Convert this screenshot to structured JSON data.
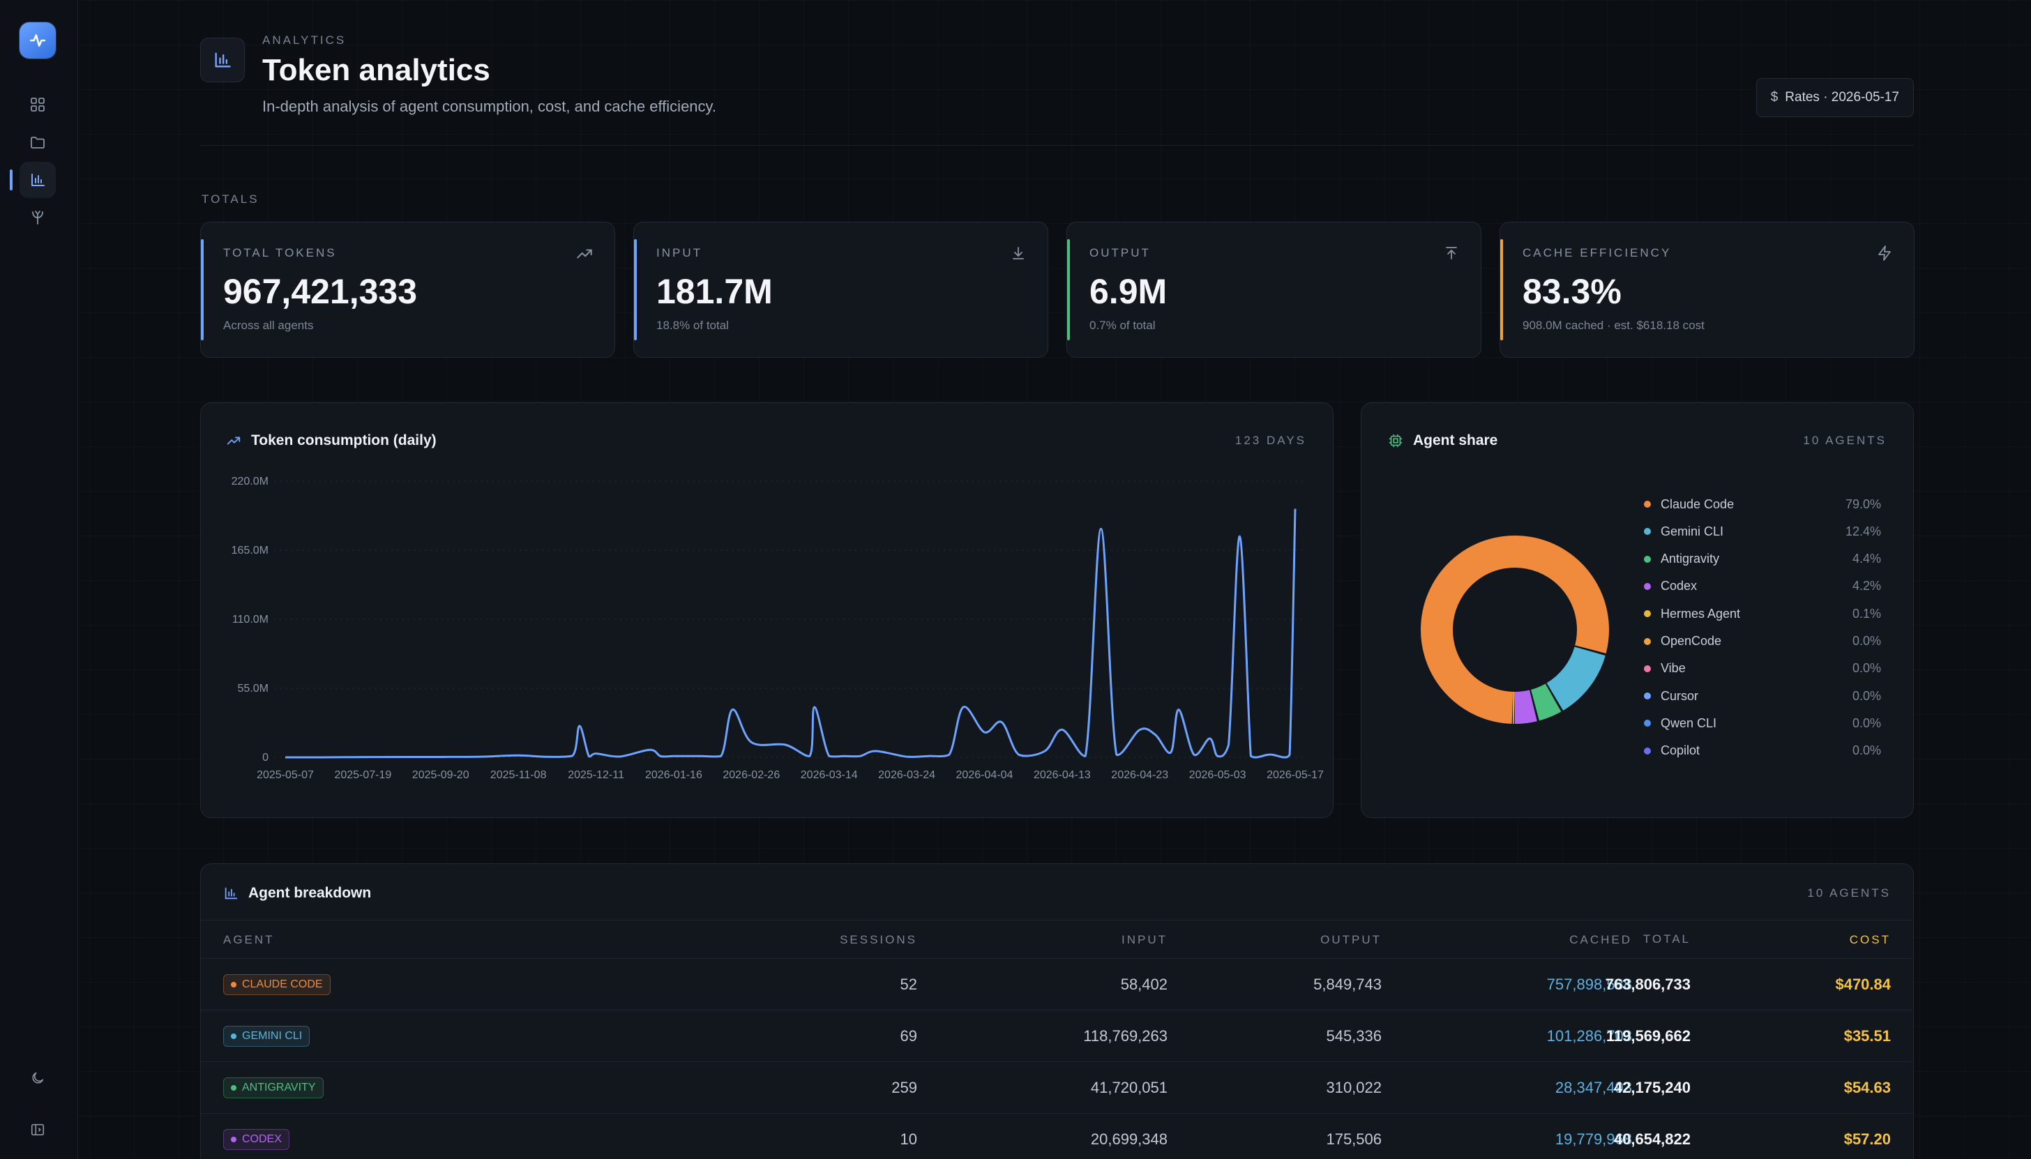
{
  "header": {
    "eyebrow": "ANALYTICS",
    "title": "Token analytics",
    "subtitle": "In-depth analysis of agent consumption, cost, and cache efficiency.",
    "rates_icon": "$",
    "rates_label": "Rates · 2026-05-17"
  },
  "totals_label": "TOTALS",
  "stats": [
    {
      "label": "TOTAL TOKENS",
      "value": "967,421,333",
      "sub": "Across all agents",
      "icon": "trending-up-icon",
      "color": "#6ea3ff"
    },
    {
      "label": "INPUT",
      "value": "181.7M",
      "sub": "18.8% of total",
      "icon": "download-icon",
      "color": "#6ea3ff"
    },
    {
      "label": "OUTPUT",
      "value": "6.9M",
      "sub": "0.7% of total",
      "icon": "upload-icon",
      "color": "#4cc07f"
    },
    {
      "label": "CACHE EFFICIENCY",
      "value": "83.3%",
      "sub": "908.0M cached · est. $618.18 cost",
      "icon": "zap-icon",
      "color": "#f0a23a"
    }
  ],
  "consumption": {
    "title": "Token consumption (daily)",
    "meta": "123 DAYS"
  },
  "share": {
    "title": "Agent share",
    "meta": "10 AGENTS"
  },
  "breakdown": {
    "title": "Agent breakdown",
    "meta": "10 AGENTS",
    "columns": [
      "AGENT",
      "SESSIONS",
      "INPUT",
      "OUTPUT",
      "CACHED",
      "TOTAL",
      "COST"
    ],
    "rows": [
      {
        "agent": "CLAUDE CODE",
        "color": "#f08a3c",
        "sessions": "52",
        "input": "58,402",
        "output": "5,849,743",
        "cached": "757,898,588",
        "total": "763,806,733",
        "cost": "$470.84"
      },
      {
        "agent": "GEMINI CLI",
        "color": "#56b6d8",
        "sessions": "69",
        "input": "118,769,263",
        "output": "545,336",
        "cached": "101,286,703",
        "total": "119,569,662",
        "cost": "$35.51"
      },
      {
        "agent": "ANTIGRAVITY",
        "color": "#4cc07f",
        "sessions": "259",
        "input": "41,720,051",
        "output": "310,022",
        "cached": "28,347,493",
        "total": "42,175,240",
        "cost": "$54.63"
      },
      {
        "agent": "CODEX",
        "color": "#b266f0",
        "sessions": "10",
        "input": "20,699,348",
        "output": "175,506",
        "cached": "19,779,968",
        "total": "40,654,822",
        "cost": "$57.20"
      }
    ]
  },
  "colors": {
    "accent": "#6ea3ff",
    "cached": "#5fb1e0",
    "cost": "#f5c242"
  },
  "chart_data": [
    {
      "type": "line",
      "title": "Token consumption (daily)",
      "xlabel": "",
      "ylabel": "",
      "ylim": [
        0,
        220
      ],
      "y_unit": "M",
      "y_ticks": [
        "0",
        "55.0M",
        "110.0M",
        "165.0M",
        "220.0M"
      ],
      "x_ticks": [
        "2025-05-07",
        "2025-07-19",
        "2025-09-20",
        "2025-11-08",
        "2025-12-11",
        "2026-01-16",
        "2026-02-26",
        "2026-03-14",
        "2026-03-24",
        "2026-04-04",
        "2026-04-13",
        "2026-04-23",
        "2026-05-03",
        "2026-05-17"
      ],
      "grid": true,
      "x": [
        "2025-05-07",
        "2025-06-10",
        "2025-07-19",
        "2025-08-20",
        "2025-09-20",
        "2025-10-15",
        "2025-11-08",
        "2025-11-20",
        "2025-12-01",
        "2025-12-04",
        "2025-12-08",
        "2025-12-11",
        "2025-12-22",
        "2026-01-05",
        "2026-01-10",
        "2026-01-16",
        "2026-01-30",
        "2026-02-10",
        "2026-02-16",
        "2026-02-26",
        "2026-03-05",
        "2026-03-10",
        "2026-03-11",
        "2026-03-14",
        "2026-03-16",
        "2026-03-18",
        "2026-03-20",
        "2026-03-24",
        "2026-03-27",
        "2026-03-30",
        "2026-04-01",
        "2026-04-04",
        "2026-04-06",
        "2026-04-08",
        "2026-04-11",
        "2026-04-13",
        "2026-04-16",
        "2026-04-18",
        "2026-04-20",
        "2026-04-23",
        "2026-04-25",
        "2026-04-27",
        "2026-04-28",
        "2026-04-30",
        "2026-05-02",
        "2026-05-03",
        "2026-05-05",
        "2026-05-07",
        "2026-05-09",
        "2026-05-10",
        "2026-05-12",
        "2026-05-13",
        "2026-05-15",
        "2026-05-16",
        "2026-05-17"
      ],
      "series": [
        {
          "values": [
            0,
            0,
            0.2,
            0.3,
            0.3,
            0.5,
            1.5,
            0.4,
            1.2,
            25,
            0.8,
            3,
            0.6,
            6,
            0.9,
            1,
            1,
            1,
            38,
            12,
            10,
            1,
            40,
            1,
            1,
            1,
            5,
            0.5,
            1,
            2,
            40,
            20,
            28,
            2,
            5,
            22,
            1,
            182,
            2,
            22,
            18,
            4,
            38,
            2,
            15,
            1,
            10,
            176,
            1,
            0,
            2,
            2,
            0,
            2,
            198
          ]
        }
      ]
    },
    {
      "type": "pie",
      "title": "Agent share",
      "categories": [
        "Claude Code",
        "Gemini CLI",
        "Antigravity",
        "Codex",
        "Hermes Agent",
        "OpenCode",
        "Vibe",
        "Cursor",
        "Qwen CLI",
        "Copilot"
      ],
      "values": [
        79.0,
        12.4,
        4.4,
        4.2,
        0.1,
        0.0,
        0.0,
        0.0,
        0.0,
        0.0
      ],
      "labels": [
        "79.0%",
        "12.4%",
        "4.4%",
        "4.2%",
        "0.1%",
        "0.0%",
        "0.0%",
        "0.0%",
        "0.0%",
        "0.0%"
      ],
      "colors": [
        "#f08a3c",
        "#56b6d8",
        "#4cc07f",
        "#b266f0",
        "#e8b83a",
        "#f0a23a",
        "#f07aa6",
        "#6ea3ff",
        "#4f8ff0",
        "#6a6ff0"
      ],
      "legend": "right"
    }
  ]
}
